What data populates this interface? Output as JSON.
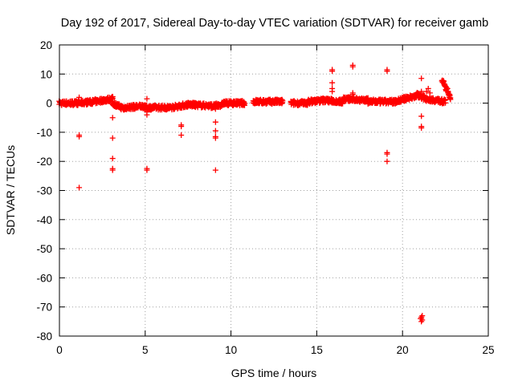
{
  "chart_data": {
    "type": "scatter",
    "title": "Day 192 of 2017, Sidereal Day-to-day VTEC variation (SDTVAR) for receiver gamb",
    "xlabel": "GPS time / hours",
    "ylabel": "SDTVAR / TECUs",
    "xlim": [
      0,
      25
    ],
    "ylim": [
      -80,
      20
    ],
    "xticks": [
      0,
      5,
      10,
      15,
      20,
      25
    ],
    "yticks": [
      20,
      10,
      0,
      -10,
      -20,
      -30,
      -40,
      -50,
      -60,
      -70,
      -80
    ],
    "grid": true,
    "marker": "+",
    "color": "#ff0000",
    "dense_band": [
      {
        "x_start": 0.0,
        "x_end": 1.0,
        "y_start": 0.0,
        "y_end": 0.0
      },
      {
        "x_start": 1.0,
        "x_end": 2.0,
        "y_start": 0.0,
        "y_end": 0.5
      },
      {
        "x_start": 2.0,
        "x_end": 3.1,
        "y_start": 0.5,
        "y_end": 1.5
      },
      {
        "x_start": 3.1,
        "x_end": 3.8,
        "y_start": 0.0,
        "y_end": -2.0
      },
      {
        "x_start": 3.8,
        "x_end": 5.0,
        "y_start": -1.5,
        "y_end": -1.0
      },
      {
        "x_start": 5.0,
        "x_end": 6.5,
        "y_start": -1.5,
        "y_end": -1.5
      },
      {
        "x_start": 6.5,
        "x_end": 7.5,
        "y_start": -1.5,
        "y_end": -0.5
      },
      {
        "x_start": 7.5,
        "x_end": 9.0,
        "y_start": -0.5,
        "y_end": -1.0
      },
      {
        "x_start": 9.0,
        "x_end": 9.5,
        "y_start": -1.0,
        "y_end": -0.5
      },
      {
        "x_start": 9.5,
        "x_end": 10.8,
        "y_start": 0.0,
        "y_end": 0.0
      },
      {
        "x_start": 11.3,
        "x_end": 13.0,
        "y_start": 0.5,
        "y_end": 0.5
      },
      {
        "x_start": 13.5,
        "x_end": 14.5,
        "y_start": 0.0,
        "y_end": 0.0
      },
      {
        "x_start": 14.5,
        "x_end": 15.5,
        "y_start": 0.5,
        "y_end": 1.0
      },
      {
        "x_start": 15.5,
        "x_end": 16.5,
        "y_start": 1.0,
        "y_end": 0.5
      },
      {
        "x_start": 16.5,
        "x_end": 18.0,
        "y_start": 1.5,
        "y_end": 1.0
      },
      {
        "x_start": 18.0,
        "x_end": 19.5,
        "y_start": 0.5,
        "y_end": 0.5
      },
      {
        "x_start": 19.5,
        "x_end": 20.8,
        "y_start": 0.5,
        "y_end": 2.5
      },
      {
        "x_start": 20.8,
        "x_end": 21.4,
        "y_start": 3.0,
        "y_end": 1.5
      },
      {
        "x_start": 21.4,
        "x_end": 22.5,
        "y_start": 1.5,
        "y_end": 0.5
      },
      {
        "x_start": 22.3,
        "x_end": 22.8,
        "y_start": 8.0,
        "y_end": 2.0
      }
    ],
    "outliers": [
      [
        1.15,
        2.0
      ],
      [
        1.15,
        -11.0
      ],
      [
        1.15,
        -11.5
      ],
      [
        1.15,
        -29.0
      ],
      [
        3.1,
        -5.0
      ],
      [
        3.1,
        -12.0
      ],
      [
        3.1,
        -19.0
      ],
      [
        3.1,
        -22.5
      ],
      [
        3.1,
        -23.0
      ],
      [
        5.1,
        1.5
      ],
      [
        5.1,
        -3.0
      ],
      [
        5.1,
        -4.0
      ],
      [
        5.1,
        -22.5
      ],
      [
        5.1,
        -23.0
      ],
      [
        7.1,
        -7.5
      ],
      [
        7.1,
        -8.0
      ],
      [
        7.1,
        -11.0
      ],
      [
        9.1,
        -2.0
      ],
      [
        9.1,
        -6.5
      ],
      [
        9.1,
        -9.5
      ],
      [
        9.1,
        -11.5
      ],
      [
        9.1,
        -12.0
      ],
      [
        9.1,
        -23.0
      ],
      [
        15.9,
        11.0
      ],
      [
        15.9,
        11.5
      ],
      [
        15.9,
        7.0
      ],
      [
        15.9,
        5.0
      ],
      [
        15.9,
        4.0
      ],
      [
        17.1,
        12.5
      ],
      [
        17.1,
        13.0
      ],
      [
        17.1,
        3.5
      ],
      [
        17.1,
        3.0
      ],
      [
        19.1,
        11.5
      ],
      [
        19.1,
        11.0
      ],
      [
        19.1,
        -17.0
      ],
      [
        19.1,
        -17.5
      ],
      [
        19.1,
        -20.0
      ],
      [
        21.1,
        8.5
      ],
      [
        21.1,
        4.0
      ],
      [
        21.1,
        -4.5
      ],
      [
        21.1,
        -8.0
      ],
      [
        21.1,
        -8.5
      ],
      [
        21.1,
        -73.5
      ],
      [
        21.1,
        -74.0
      ],
      [
        21.15,
        -74.5
      ],
      [
        21.05,
        -74.0
      ],
      [
        21.1,
        -75.0
      ],
      [
        21.15,
        -73.0
      ],
      [
        21.5,
        5.0
      ],
      [
        21.4,
        4.0
      ],
      [
        21.6,
        3.5
      ]
    ]
  }
}
